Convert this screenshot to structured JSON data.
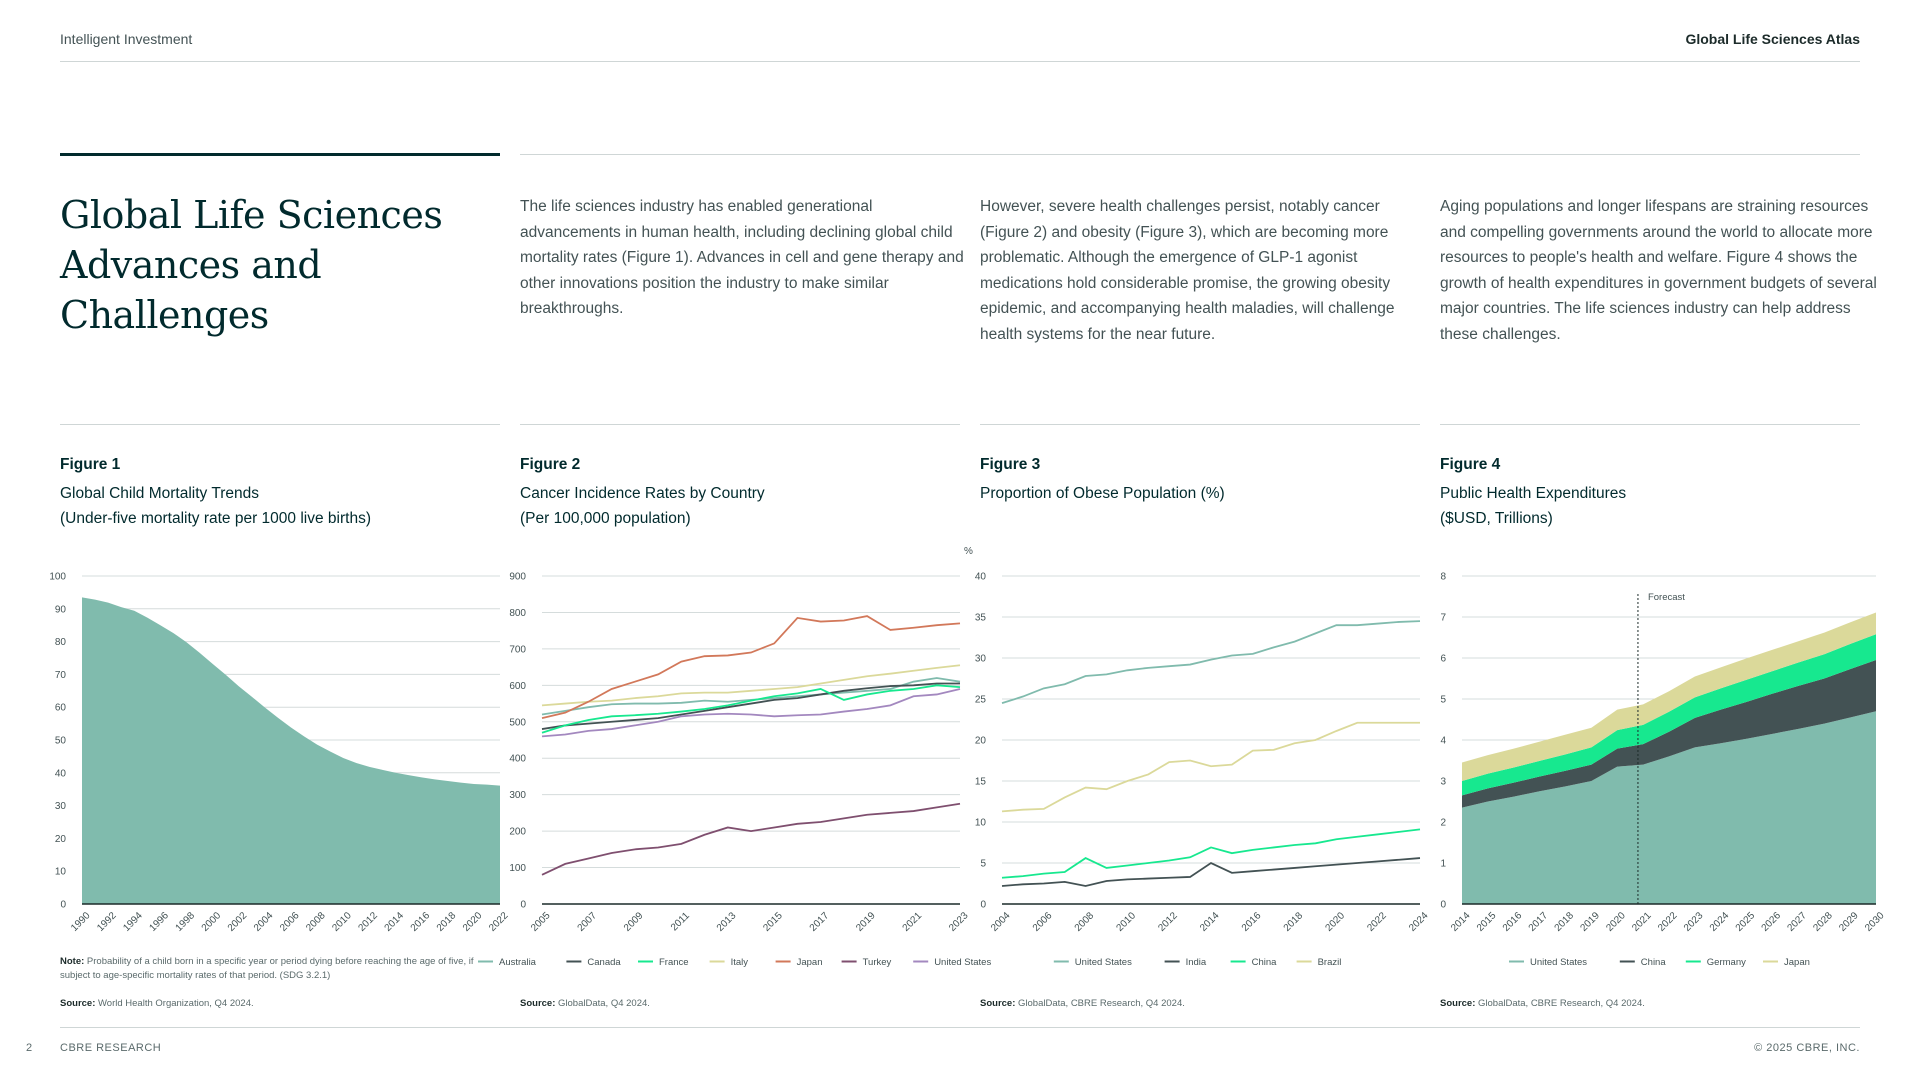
{
  "header": {
    "left": "Intelligent Investment",
    "right": "Global Life Sciences Atlas"
  },
  "title": "Global Life Sciences Advances and Challenges",
  "paragraphs": [
    "The life sciences industry has enabled generational advancements in human health, including declining global child mortality rates (Figure 1). Advances in cell and gene therapy and other innovations position the industry to make similar breakthroughs.",
    "However, severe health challenges persist, notably cancer (Figure 2) and obesity (Figure 3), which are becoming more problematic. Although the emergence of GLP-1 agonist medications hold considerable promise, the growing obesity epidemic, and accompanying health maladies, will challenge health systems for the near future.",
    "Aging populations and longer lifespans are straining resources and compelling governments around the world to allocate more resources to people's health and welfare. Figure 4 shows the growth of health expenditures in government budgets of several major countries. The life sciences industry can help address these challenges."
  ],
  "figures": [
    {
      "label": "Figure 1",
      "title_line1": "Global Child Mortality Trends",
      "title_line2": "(Under-five mortality rate per 1000 live births)",
      "source_label": "Source:",
      "source_text": "World Health Organization, Q4 2024.",
      "note_label": "Note:",
      "note_text": "Probability of a child born in a specific year or period dying before reaching the age of five, if subject to age-specific mortality rates of that period. (SDG 3.2.1)"
    },
    {
      "label": "Figure 2",
      "title_line1": "Cancer Incidence Rates by Country",
      "title_line2": "(Per 100,000 population)",
      "source_label": "Source:",
      "source_text": "GlobalData, Q4 2024."
    },
    {
      "label": "Figure 3",
      "title_line1": "Proportion of Obese Population (%)",
      "title_line2": "",
      "source_label": "Source:",
      "source_text": "GlobalData, CBRE Research, Q4 2024."
    },
    {
      "label": "Figure 4",
      "title_line1": "Public Health Expenditures",
      "title_line2": "($USD, Trillions)",
      "source_label": "Source:",
      "source_text": "GlobalData, CBRE Research, Q4 2024."
    }
  ],
  "footer": {
    "page": "2",
    "left": "CBRE RESEARCH",
    "right": "© 2025 CBRE, INC."
  },
  "chart_data": [
    {
      "type": "area",
      "x": [
        1990,
        1991,
        1992,
        1993,
        1994,
        1995,
        1996,
        1997,
        1998,
        1999,
        2000,
        2001,
        2002,
        2003,
        2004,
        2005,
        2006,
        2007,
        2008,
        2009,
        2010,
        2011,
        2012,
        2013,
        2014,
        2015,
        2016,
        2017,
        2018,
        2019,
        2020,
        2021,
        2022
      ],
      "x_tick_labels": [
        "1990",
        "1992",
        "1994",
        "1996",
        "1998",
        "2000",
        "2002",
        "2004",
        "2006",
        "2008",
        "2010",
        "2012",
        "2014",
        "2016",
        "2018",
        "2020",
        "2022"
      ],
      "series": [
        {
          "values": [
            93.5,
            92.8,
            91.9,
            90.5,
            89.4,
            87.3,
            85.0,
            82.6,
            79.8,
            76.6,
            73.2,
            69.9,
            66.4,
            63.2,
            59.9,
            56.8,
            53.8,
            51.1,
            48.6,
            46.5,
            44.5,
            43.0,
            41.8,
            40.9,
            40.0,
            39.3,
            38.6,
            38.0,
            37.5,
            37.0,
            36.6,
            36.4,
            36.1
          ],
          "color": "#80bbad"
        }
      ],
      "ylim": [
        0,
        100
      ],
      "yticks": [
        0,
        10,
        20,
        30,
        40,
        50,
        60,
        70,
        80,
        90,
        100
      ],
      "grid": true
    },
    {
      "type": "line",
      "x": [
        2005,
        2006,
        2007,
        2008,
        2009,
        2010,
        2011,
        2012,
        2013,
        2014,
        2015,
        2016,
        2017,
        2018,
        2019,
        2020,
        2021,
        2022,
        2023
      ],
      "x_tick_labels": [
        "2005",
        "2007",
        "2009",
        "2011",
        "2013",
        "2015",
        "2017",
        "2019",
        "2021",
        "2023"
      ],
      "series": [
        {
          "name": "Australia",
          "color": "#80bbad",
          "values": [
            520,
            530,
            540,
            548,
            550,
            550,
            552,
            558,
            555,
            560,
            565,
            570,
            575,
            580,
            585,
            590,
            610,
            620,
            610
          ]
        },
        {
          "name": "Canada",
          "color": "#435254",
          "values": [
            480,
            490,
            495,
            500,
            505,
            510,
            520,
            530,
            540,
            550,
            560,
            565,
            575,
            585,
            592,
            598,
            600,
            605,
            605
          ]
        },
        {
          "name": "France",
          "color": "#17e88f",
          "values": [
            470,
            490,
            505,
            515,
            518,
            522,
            528,
            535,
            545,
            558,
            570,
            578,
            590,
            560,
            575,
            585,
            590,
            600,
            595
          ]
        },
        {
          "name": "Italy",
          "color": "#dbd99a",
          "values": [
            545,
            550,
            555,
            558,
            565,
            570,
            578,
            580,
            580,
            585,
            590,
            595,
            605,
            615,
            625,
            632,
            640,
            648,
            655
          ]
        },
        {
          "name": "Japan",
          "color": "#d2785a",
          "values": [
            510,
            525,
            555,
            590,
            610,
            630,
            665,
            680,
            682,
            690,
            715,
            785,
            775,
            778,
            790,
            752,
            758,
            765,
            770
          ]
        },
        {
          "name": "Turkey",
          "color": "#7f4f6f",
          "values": [
            80,
            110,
            125,
            140,
            150,
            155,
            165,
            190,
            210,
            200,
            210,
            220,
            225,
            235,
            245,
            250,
            255,
            265,
            275
          ]
        },
        {
          "name": "United States",
          "color": "#a388bf",
          "values": [
            460,
            465,
            475,
            480,
            490,
            500,
            515,
            520,
            522,
            520,
            515,
            518,
            520,
            528,
            535,
            545,
            570,
            575,
            590
          ]
        }
      ],
      "ylim": [
        0,
        900
      ],
      "yticks": [
        0,
        100,
        200,
        300,
        400,
        500,
        600,
        700,
        800,
        900
      ],
      "grid": true
    },
    {
      "type": "line",
      "ylabel": "%",
      "x": [
        2004,
        2005,
        2006,
        2007,
        2008,
        2009,
        2010,
        2011,
        2012,
        2013,
        2014,
        2015,
        2016,
        2017,
        2018,
        2019,
        2020,
        2021,
        2022,
        2023,
        2024
      ],
      "x_tick_labels": [
        "2004",
        "2006",
        "2008",
        "2010",
        "2012",
        "2014",
        "2016",
        "2018",
        "2020",
        "2022",
        "2024"
      ],
      "series": [
        {
          "name": "United States",
          "color": "#80bbad",
          "values": [
            24.5,
            25.3,
            26.3,
            26.8,
            27.8,
            28.0,
            28.5,
            28.8,
            29.0,
            29.2,
            29.8,
            30.3,
            30.5,
            31.3,
            32.0,
            33.0,
            34.0,
            34.0,
            34.2,
            34.4,
            34.5
          ]
        },
        {
          "name": "India",
          "color": "#435254",
          "values": [
            2.2,
            2.4,
            2.5,
            2.7,
            2.2,
            2.8,
            3.0,
            3.1,
            3.2,
            3.3,
            5.0,
            3.8,
            4.0,
            4.2,
            4.4,
            4.6,
            4.8,
            5.0,
            5.2,
            5.4,
            5.6
          ]
        },
        {
          "name": "China",
          "color": "#17e88f",
          "values": [
            3.2,
            3.4,
            3.7,
            3.9,
            5.6,
            4.4,
            4.7,
            5.0,
            5.3,
            5.7,
            6.9,
            6.2,
            6.6,
            6.9,
            7.2,
            7.4,
            7.9,
            8.2,
            8.5,
            8.8,
            9.1
          ]
        },
        {
          "name": "Brazil",
          "color": "#dbd99a",
          "values": [
            11.3,
            11.5,
            11.6,
            13.0,
            14.2,
            14.0,
            15.0,
            15.8,
            17.3,
            17.5,
            16.8,
            17.0,
            18.7,
            18.8,
            19.6,
            20.0,
            21.1,
            22.1,
            22.1,
            22.1,
            22.1
          ]
        }
      ],
      "ylim": [
        0,
        40
      ],
      "yticks": [
        0,
        5,
        10,
        15,
        20,
        25,
        30,
        35,
        40
      ],
      "grid": true
    },
    {
      "type": "area",
      "stacked": true,
      "annotation": "Forecast",
      "annotation_x": 2020.8,
      "x": [
        2014,
        2015,
        2016,
        2017,
        2018,
        2019,
        2020,
        2021,
        2022,
        2023,
        2024,
        2025,
        2026,
        2027,
        2028,
        2029,
        2030
      ],
      "x_tick_labels": [
        "2014",
        "2015",
        "2016",
        "2017",
        "2018",
        "2019",
        "2020",
        "2021",
        "2022",
        "2023",
        "2024",
        "2025",
        "2026",
        "2027",
        "2028",
        "2029",
        "2030"
      ],
      "series": [
        {
          "name": "United States",
          "color": "#80bbad",
          "values": [
            2.35,
            2.5,
            2.62,
            2.75,
            2.87,
            3.0,
            3.35,
            3.4,
            3.6,
            3.82,
            3.92,
            4.03,
            4.15,
            4.27,
            4.4,
            4.55,
            4.7
          ]
        },
        {
          "name": "China",
          "color": "#435254",
          "values": [
            0.3,
            0.32,
            0.34,
            0.36,
            0.38,
            0.4,
            0.44,
            0.5,
            0.6,
            0.72,
            0.82,
            0.9,
            0.98,
            1.05,
            1.1,
            1.18,
            1.25
          ]
        },
        {
          "name": "Germany",
          "color": "#17e88f",
          "values": [
            0.35,
            0.36,
            0.37,
            0.38,
            0.4,
            0.42,
            0.45,
            0.47,
            0.49,
            0.5,
            0.52,
            0.54,
            0.55,
            0.57,
            0.59,
            0.61,
            0.63
          ]
        },
        {
          "name": "Japan",
          "color": "#dbd99a",
          "values": [
            0.45,
            0.45,
            0.46,
            0.47,
            0.48,
            0.48,
            0.5,
            0.5,
            0.5,
            0.51,
            0.51,
            0.52,
            0.52,
            0.52,
            0.53,
            0.53,
            0.53
          ]
        }
      ],
      "ylim": [
        0,
        8
      ],
      "yticks": [
        0,
        1,
        2,
        3,
        4,
        5,
        6,
        7,
        8
      ],
      "grid": true
    }
  ]
}
